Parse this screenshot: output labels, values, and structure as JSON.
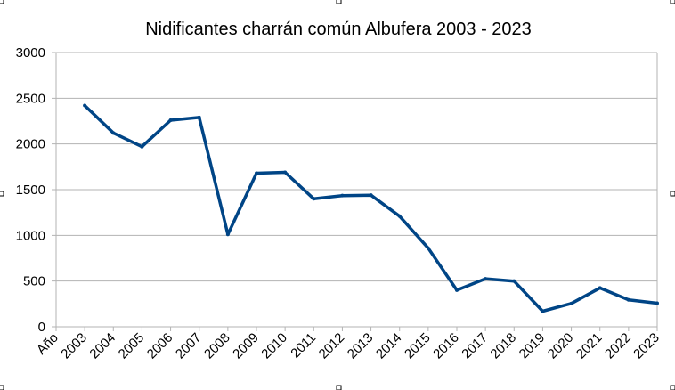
{
  "chart_data": {
    "type": "line",
    "title": "Nidificantes charrán común Albufera 2003 - 2023",
    "categories": [
      "Año",
      "2003",
      "2004",
      "2005",
      "2006",
      "2007",
      "2008",
      "2009",
      "2010",
      "2011",
      "2012",
      "2013",
      "2014",
      "2015",
      "2016",
      "2017",
      "2018",
      "2019",
      "2020",
      "2021",
      "2022",
      "2023"
    ],
    "series": [
      {
        "color": "#004586",
        "values": [
          null,
          2420,
          2120,
          1970,
          2260,
          2290,
          1010,
          1680,
          1690,
          1400,
          1435,
          1440,
          1210,
          860,
          400,
          525,
          500,
          170,
          255,
          425,
          295,
          258
        ]
      }
    ],
    "yticks": [
      "0",
      "500",
      "1000",
      "1500",
      "2000",
      "2500",
      "3000"
    ],
    "ylim": [
      0,
      3000
    ],
    "grid": true,
    "legend": "none"
  }
}
